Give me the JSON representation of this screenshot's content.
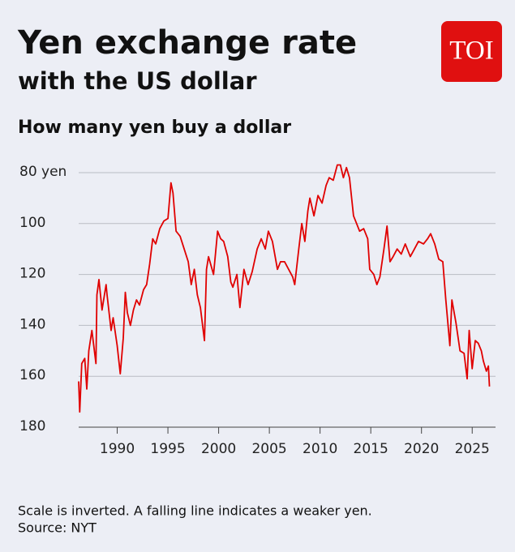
{
  "chart_data": {
    "type": "line",
    "title": "Yen exchange rate",
    "title_line2": "with the US dollar",
    "subtitle": "How many yen buy a dollar",
    "logo": "TOI",
    "notes": [
      "Scale is inverted. A falling line indicates a weaker yen.",
      "Source: NYT"
    ],
    "y_inverted": true,
    "grid": true,
    "xlim": [
      1986.2,
      2027.3
    ],
    "ylim": [
      76,
      180
    ],
    "xticks": [
      1990,
      1995,
      2000,
      2005,
      2010,
      2015,
      2020,
      2025
    ],
    "yticks": [
      {
        "value": 80,
        "label": "80 yen"
      },
      100,
      120,
      140,
      160,
      180
    ],
    "x": [
      1986.2,
      1986.3,
      1986.5,
      1986.8,
      1987.0,
      1987.2,
      1987.5,
      1987.9,
      1988.0,
      1988.2,
      1988.5,
      1988.9,
      1989.0,
      1989.4,
      1989.6,
      1990.0,
      1990.3,
      1990.6,
      1990.8,
      1991.0,
      1991.3,
      1991.6,
      1991.9,
      1992.2,
      1992.6,
      1992.9,
      1993.2,
      1993.5,
      1993.8,
      1994.2,
      1994.6,
      1995.0,
      1995.3,
      1995.5,
      1995.8,
      1996.2,
      1996.6,
      1997.0,
      1997.3,
      1997.6,
      1997.9,
      1998.2,
      1998.6,
      1998.8,
      1999.0,
      1999.5,
      1999.9,
      2000.2,
      2000.5,
      2000.9,
      2001.2,
      2001.4,
      2001.8,
      2002.1,
      2002.5,
      2002.9,
      2003.3,
      2003.8,
      2004.2,
      2004.6,
      2004.9,
      2005.3,
      2005.8,
      2006.1,
      2006.5,
      2006.9,
      2007.3,
      2007.5,
      2007.9,
      2008.2,
      2008.5,
      2008.8,
      2009.0,
      2009.4,
      2009.8,
      2010.2,
      2010.6,
      2010.9,
      2011.3,
      2011.7,
      2012.0,
      2012.3,
      2012.6,
      2012.9,
      2013.3,
      2013.5,
      2013.9,
      2014.3,
      2014.7,
      2014.9,
      2015.3,
      2015.6,
      2015.9,
      2016.3,
      2016.6,
      2016.9,
      2017.2,
      2017.6,
      2018.0,
      2018.4,
      2018.9,
      2019.3,
      2019.7,
      2020.2,
      2020.6,
      2020.9,
      2021.3,
      2021.7,
      2022.1,
      2022.4,
      2022.8,
      2023.0,
      2023.4,
      2023.8,
      2024.2,
      2024.5,
      2024.7,
      2025.0,
      2025.3,
      2025.6,
      2025.9,
      2026.1,
      2026.4,
      2026.6,
      2026.7
    ],
    "series": [
      {
        "color": "#e00000",
        "values": [
          162,
          174,
          155,
          153,
          165,
          150,
          142,
          155,
          128,
          122,
          134,
          124,
          128,
          142,
          137,
          148,
          159,
          145,
          127,
          135,
          140,
          134,
          130,
          132,
          126,
          124,
          116,
          106,
          108,
          102,
          99,
          98,
          84,
          88,
          103,
          105,
          110,
          115,
          124,
          118,
          128,
          133,
          146,
          118,
          113,
          120,
          103,
          106,
          107,
          113,
          123,
          125,
          120,
          133,
          118,
          124,
          119,
          110,
          106,
          110,
          103,
          107,
          118,
          115,
          115,
          118,
          121,
          124,
          110,
          100,
          107,
          95,
          90,
          97,
          89,
          92,
          85,
          82,
          83,
          77,
          77,
          82,
          78,
          82,
          97,
          99,
          103,
          102,
          106,
          118,
          120,
          124,
          121,
          110,
          101,
          115,
          113,
          110,
          112,
          108,
          113,
          110,
          107,
          108,
          106,
          104,
          108,
          114,
          115,
          130,
          148,
          130,
          139,
          150,
          151,
          161,
          142,
          157,
          146,
          147,
          150,
          154,
          158,
          156,
          164
        ]
      }
    ]
  }
}
